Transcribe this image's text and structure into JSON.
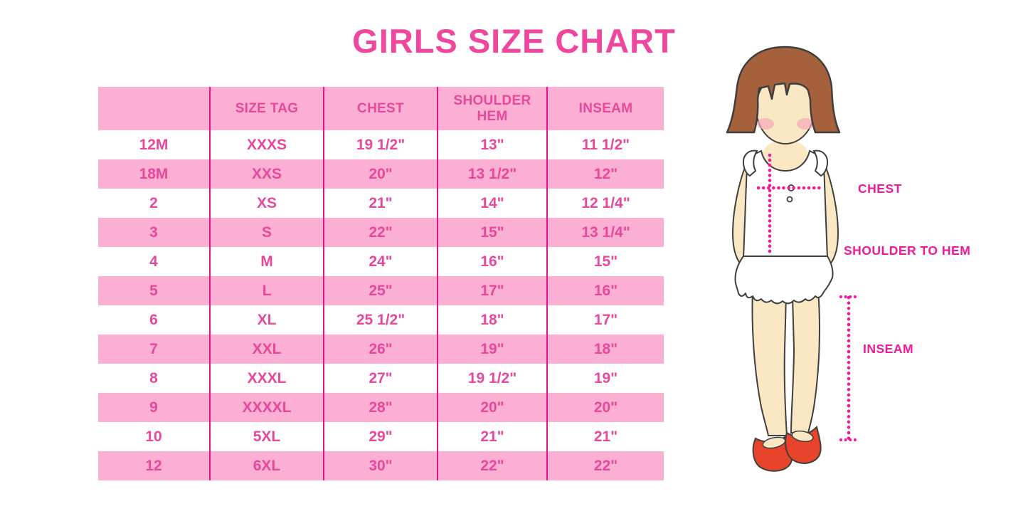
{
  "title": "GIRLS SIZE CHART",
  "chart_data": {
    "type": "table",
    "title": "GIRLS SIZE CHART",
    "columns": [
      "",
      "SIZE TAG",
      "CHEST",
      "SHOULDER HEM",
      "INSEAM"
    ],
    "rows": [
      [
        "12M",
        "XXXS",
        "19 1/2\"",
        "13\"",
        "11 1/2\""
      ],
      [
        "18M",
        "XXS",
        "20\"",
        "13 1/2\"",
        "12\""
      ],
      [
        "2",
        "XS",
        "21\"",
        "14\"",
        "12 1/4\""
      ],
      [
        "3",
        "S",
        "22\"",
        "15\"",
        "13 1/4\""
      ],
      [
        "4",
        "M",
        "24\"",
        "16\"",
        "15\""
      ],
      [
        "5",
        "L",
        "25\"",
        "17\"",
        "16\""
      ],
      [
        "6",
        "XL",
        "25 1/2\"",
        "18\"",
        "17\""
      ],
      [
        "7",
        "XXL",
        "26\"",
        "19\"",
        "18\""
      ],
      [
        "8",
        "XXXL",
        "27\"",
        "19 1/2\"",
        "19\""
      ],
      [
        "9",
        "XXXXL",
        "28\"",
        "20\"",
        "20\""
      ],
      [
        "10",
        "5XL",
        "29\"",
        "21\"",
        "21\""
      ],
      [
        "12",
        "6XL",
        "30\"",
        "22\"",
        "22\""
      ]
    ],
    "row_striping": "alternating white and pink, header pink"
  },
  "figure": {
    "chest_label": "CHEST",
    "shoulder_to_hem_label": "SHOULDER TO HEM",
    "inseam_label": "INSEAM"
  },
  "colors": {
    "title_pink": "#F0479E",
    "row_pink": "#FBAFD3",
    "grid_magenta": "#E5128C",
    "cell_text_pink": "#E8489B",
    "measure_label_magenta": "#F0189B",
    "hair_brown": "#A5613C",
    "skin": "#FAE7C3",
    "blush": "#F3A8B9",
    "shoe_red": "#E8432B",
    "outline": "#3F3F3F"
  }
}
